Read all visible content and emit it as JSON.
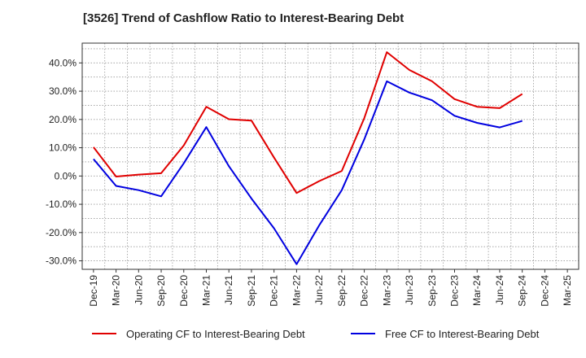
{
  "chart_data": {
    "type": "line",
    "title": "[3526]  Trend of Cashflow Ratio to Interest-Bearing Debt",
    "xlabel": "",
    "ylabel": "",
    "x": [
      "Dec-19",
      "Mar-20",
      "Jun-20",
      "Sep-20",
      "Dec-20",
      "Mar-21",
      "Jun-21",
      "Sep-21",
      "Dec-21",
      "Mar-22",
      "Jun-22",
      "Sep-22",
      "Dec-22",
      "Mar-23",
      "Jun-23",
      "Sep-23",
      "Dec-23",
      "Mar-24",
      "Jun-24",
      "Sep-24",
      "Dec-24",
      "Mar-25"
    ],
    "ylim": [
      -33,
      47
    ],
    "yticks": [
      -30,
      -20,
      -10,
      0,
      10,
      20,
      30,
      40
    ],
    "ytick_labels": [
      "-30.0%",
      "-20.0%",
      "-10.0%",
      "0.0%",
      "10.0%",
      "20.0%",
      "30.0%",
      "40.0%"
    ],
    "grid": true,
    "legend_position": "bottom",
    "series": [
      {
        "name": "Operating CF to Interest-Bearing Debt",
        "color": "#e00000",
        "values": [
          10.2,
          -0.2,
          0.5,
          1.0,
          10.8,
          24.5,
          20.1,
          19.6,
          6.5,
          -6.0,
          -1.8,
          1.8,
          20.5,
          43.8,
          37.5,
          33.5,
          27.2,
          24.5,
          24.0,
          29.0,
          null,
          null
        ]
      },
      {
        "name": "Free CF to Interest-Bearing Debt",
        "color": "#0000e0",
        "values": [
          6.0,
          -3.5,
          -5.0,
          -7.2,
          4.5,
          17.3,
          3.5,
          -8.0,
          -18.5,
          -31.2,
          -17.5,
          -5.0,
          13.0,
          33.5,
          29.5,
          26.8,
          21.3,
          18.8,
          17.2,
          19.5,
          null,
          null
        ]
      }
    ]
  }
}
